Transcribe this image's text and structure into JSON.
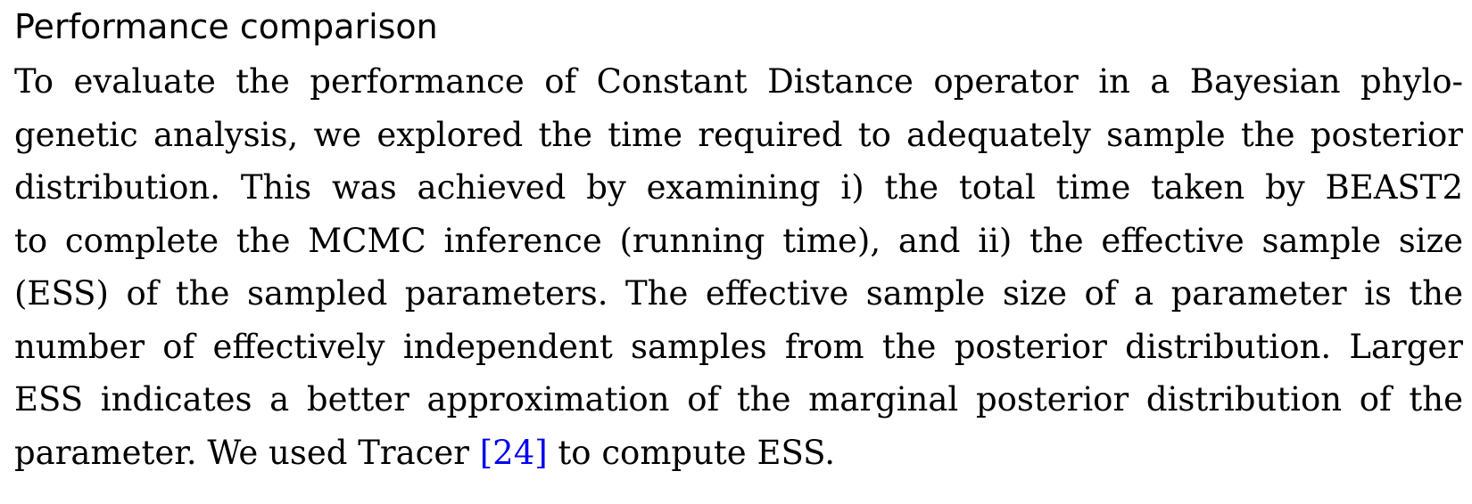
{
  "heading": "Performance comparison",
  "paragraph": {
    "lines": [
      "To evaluate the performance of Constant Distance operator in a Bayesian phylo-",
      "genetic analysis, we explored the time required to adequately sample the posterior",
      "distribution. This was achieved by examining i) the total time taken by BEAST2",
      "to complete the MCMC inference (running time), and ii) the effective sample size",
      "(ESS) of the sampled parameters. The effective sample size of a parameter is the",
      "number of effectively independent samples from the posterior distribution. Larger",
      "ESS indicates a better approximation of the marginal posterior distribution of the"
    ],
    "last_line_before": "parameter. We used Tracer ",
    "citation": "[24]",
    "last_line_after": " to compute ESS."
  },
  "colors": {
    "text": "#000000",
    "citation": "#0000ee",
    "background": "#ffffff"
  }
}
